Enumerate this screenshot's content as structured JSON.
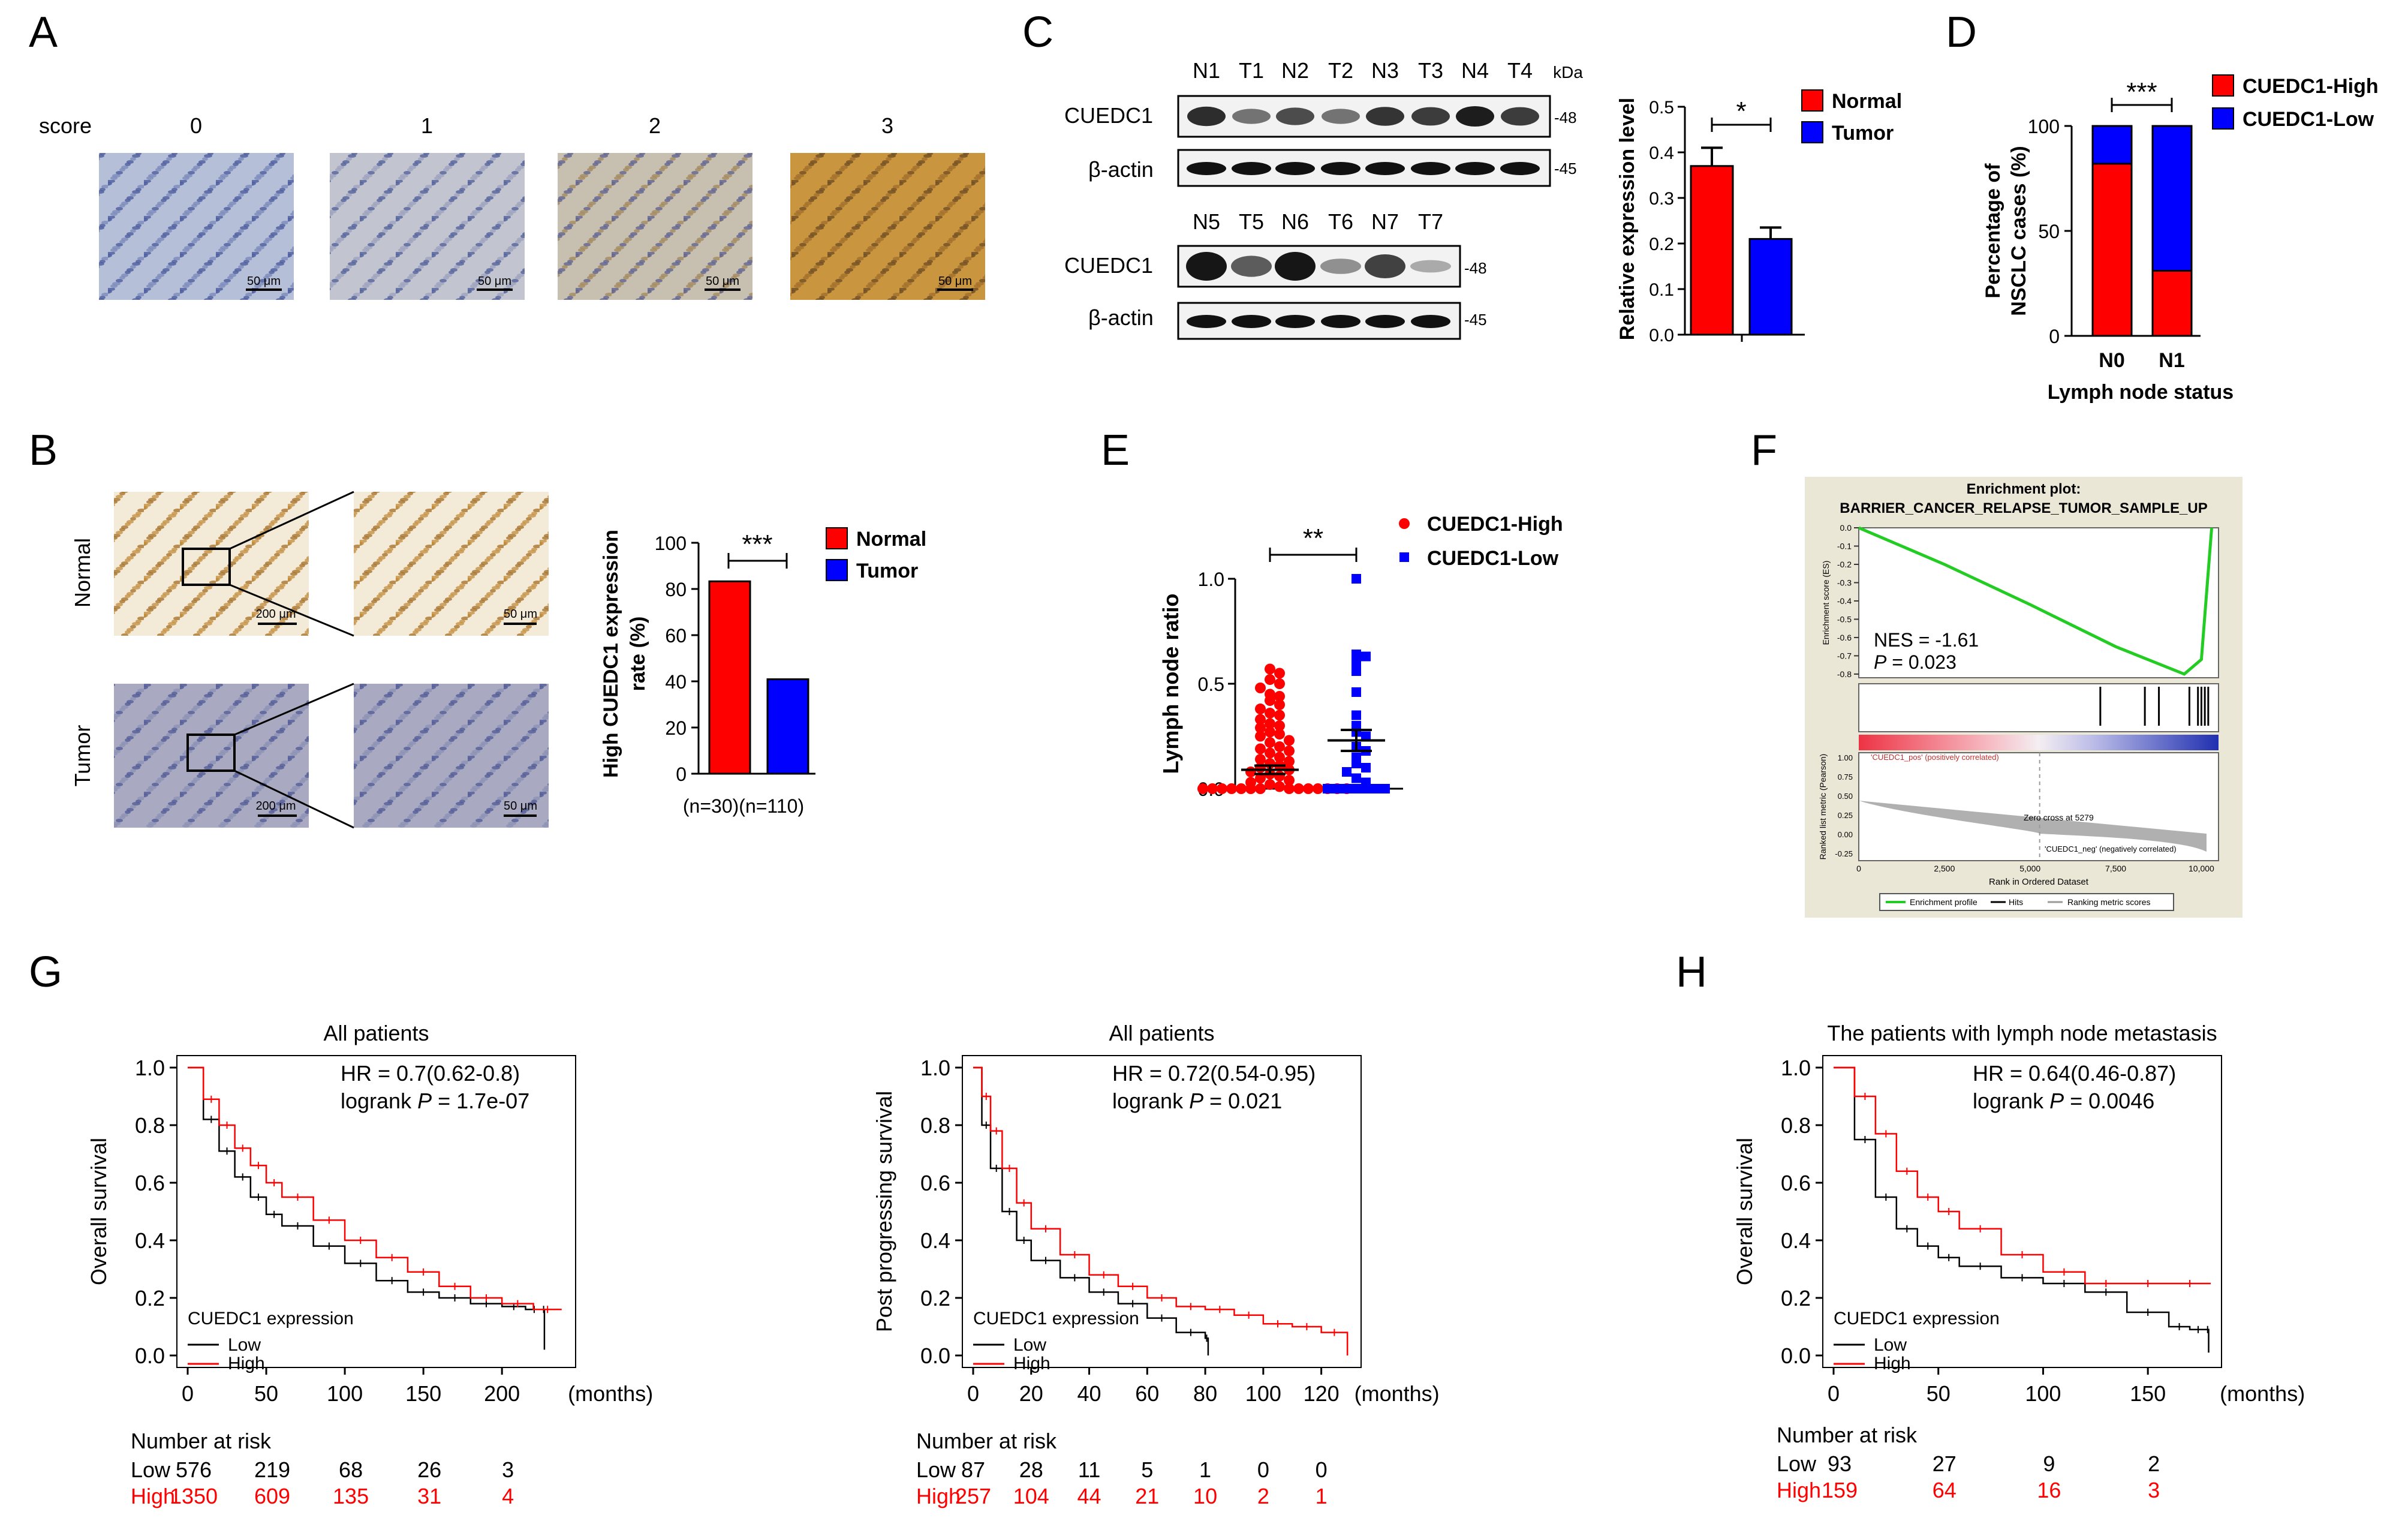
{
  "colors": {
    "normal": "#ff0000",
    "tumor": "#0000ff",
    "high": "#ff0000",
    "low": "#000000",
    "gsea_line": "#22cc22",
    "ihc_blue": "#8f9fc4",
    "ihc_brown": "#b98a3f"
  },
  "panels": {
    "A": "A",
    "B": "B",
    "C": "C",
    "D": "D",
    "E": "E",
    "F": "F",
    "G": "G",
    "H": "H"
  },
  "panelA": {
    "score_label": "score",
    "scores": [
      "0",
      "1",
      "2",
      "3"
    ],
    "scalebar": "50 μm"
  },
  "panelB": {
    "rows": [
      "Normal",
      "Tumor"
    ],
    "scalebar_low": "200 μm",
    "scalebar_high": "50 μm"
  },
  "panelC": {
    "lanes_top": [
      "N1",
      "T1",
      "N2",
      "T2",
      "N3",
      "T3",
      "N4",
      "T4"
    ],
    "lanes_bottom": [
      "N5",
      "T5",
      "N6",
      "T6",
      "N7",
      "T7"
    ],
    "kda": "kDa",
    "protein": "CUEDC1",
    "control": "β-actin",
    "mw_protein": "48",
    "mw_control": "45"
  },
  "chart_data": [
    {
      "id": "B-bar",
      "type": "bar",
      "categories": [
        "Normal",
        "Tumor"
      ],
      "values": [
        83.3,
        40.9
      ],
      "ylabel": "High CUEDC1 expression rate (%)",
      "ylim": [
        0,
        100
      ],
      "yticks": [
        "0",
        "20",
        "40",
        "60",
        "80",
        "100"
      ],
      "n_labels": [
        "(n=30)",
        "(n=110)"
      ],
      "significance": "***",
      "legend": [
        "Normal",
        "Tumor"
      ]
    },
    {
      "id": "C-bar",
      "type": "bar",
      "categories": [
        "Normal",
        "Tumor"
      ],
      "values": [
        0.37,
        0.21
      ],
      "errors": [
        0.04,
        0.025
      ],
      "ylabel": "Relative expression level",
      "ylim": [
        0,
        0.5
      ],
      "yticks": [
        "0.0",
        "0.1",
        "0.2",
        "0.3",
        "0.4",
        "0.5"
      ],
      "significance": "*",
      "legend": [
        "Normal",
        "Tumor"
      ]
    },
    {
      "id": "D-stacked",
      "type": "bar",
      "categories": [
        "N0",
        "N1"
      ],
      "series": [
        {
          "name": "CUEDC1-High",
          "values": [
            82,
            31
          ]
        },
        {
          "name": "CUEDC1-Low",
          "values": [
            18,
            69
          ]
        }
      ],
      "ylabel": "Percentage of NSCLC cases (%)",
      "xlabel": "Lymph node status",
      "ylim": [
        0,
        100
      ],
      "yticks": [
        "0",
        "50",
        "100"
      ],
      "significance": "***"
    },
    {
      "id": "E-scatter",
      "type": "scatter",
      "categories": [
        "CUEDC1-High",
        "CUEDC1-Low"
      ],
      "series": [
        {
          "name": "CUEDC1-High",
          "mean": 0.09,
          "sem": 0.02,
          "values": [
            0.57,
            0.55,
            0.52,
            0.5,
            0.48,
            0.45,
            0.44,
            0.42,
            0.4,
            0.38,
            0.36,
            0.35,
            0.33,
            0.31,
            0.3,
            0.29,
            0.27,
            0.26,
            0.25,
            0.23,
            0.22,
            0.2,
            0.19,
            0.18,
            0.17,
            0.15,
            0.14,
            0.13,
            0.12,
            0.11,
            0.1,
            0.09,
            0.08,
            0.07,
            0.06,
            0.05,
            0.04,
            0.03,
            0.02,
            0.01,
            0,
            0,
            0,
            0,
            0,
            0,
            0,
            0,
            0,
            0,
            0,
            0,
            0,
            0
          ]
        },
        {
          "name": "CUEDC1-Low",
          "mean": 0.23,
          "sem": 0.05,
          "values": [
            1.0,
            0.64,
            0.63,
            0.6,
            0.56,
            0.46,
            0.35,
            0.3,
            0.27,
            0.25,
            0.2,
            0.18,
            0.15,
            0.12,
            0.1,
            0.08,
            0.05,
            0.03,
            0,
            0,
            0,
            0,
            0,
            0,
            0
          ]
        }
      ],
      "ylabel": "Lymph node ratio",
      "ylim": [
        0,
        1
      ],
      "yticks": [
        "0.0",
        "0.5",
        "1.0"
      ],
      "significance": "**"
    },
    {
      "id": "F-gsea",
      "type": "line",
      "title": "Enrichment plot:",
      "subtitle": "BARRIER_CANCER_RELAPSE_TUMOR_SAMPLE_UP",
      "ylabel": "Enrichment score (ES)",
      "ylabel2": "Ranked list metric (Pearson)",
      "xlabel": "Rank in Ordered Dataset",
      "x": [
        0,
        2500,
        5000,
        7500,
        9500,
        10000,
        10300
      ],
      "y": [
        0,
        -0.2,
        -0.42,
        -0.65,
        -0.8,
        -0.72,
        0
      ],
      "ylim": [
        -0.8,
        0
      ],
      "yticks": [
        "0.0",
        "-0.1",
        "-0.2",
        "-0.3",
        "-0.4",
        "-0.5",
        "-0.6",
        "-0.7",
        "-0.8"
      ],
      "xticks": [
        "0",
        "2,500",
        "5,000",
        "7,500",
        "10,000"
      ],
      "y2ticks": [
        "1.00",
        "0.75",
        "0.50",
        "0.25",
        "0.00",
        "-0.25"
      ],
      "nes": "NES = -1.61",
      "p": "P = 0.023",
      "zero_cross": "Zero cross at 5279",
      "pos_label": "'CUEDC1_pos' (positively correlated)",
      "neg_label": "'CUEDC1_neg' (negatively correlated)",
      "legend": [
        "Enrichment profile",
        "Hits",
        "Ranking metric scores"
      ]
    },
    {
      "id": "G1-km",
      "type": "line",
      "title": "All patients",
      "ylabel": "Overall survival",
      "xunit": "(months)",
      "xticks": [
        0,
        50,
        100,
        150,
        200
      ],
      "xmax": 240,
      "yticks": [
        "0.0",
        "0.2",
        "0.4",
        "0.6",
        "0.8",
        "1.0"
      ],
      "hr": "HR = 0.7(0.62-0.8)",
      "logrank": "logrank ",
      "p": "P",
      "pval": " = 1.7e-07",
      "legend_title": "CUEDC1 expression",
      "series": [
        {
          "name": "Low",
          "x": [
            0,
            10,
            20,
            30,
            40,
            50,
            60,
            80,
            100,
            120,
            140,
            160,
            180,
            200,
            215,
            226,
            227
          ],
          "y": [
            1,
            0.82,
            0.71,
            0.62,
            0.55,
            0.49,
            0.45,
            0.38,
            0.32,
            0.26,
            0.22,
            0.2,
            0.18,
            0.17,
            0.16,
            0.16,
            0.02
          ]
        },
        {
          "name": "High",
          "x": [
            0,
            10,
            20,
            30,
            40,
            50,
            60,
            80,
            100,
            120,
            140,
            160,
            180,
            200,
            220,
            238
          ],
          "y": [
            1,
            0.89,
            0.8,
            0.72,
            0.66,
            0.6,
            0.55,
            0.47,
            0.4,
            0.34,
            0.29,
            0.24,
            0.2,
            0.18,
            0.16,
            0.16
          ]
        }
      ],
      "risk_title": "Number at risk",
      "risk_x": [
        "0",
        "50",
        "100",
        "150",
        "200"
      ],
      "risk": [
        {
          "name": "Low",
          "values": [
            "576",
            "219",
            "68",
            "26",
            "3"
          ]
        },
        {
          "name": "High",
          "values": [
            "1350",
            "609",
            "135",
            "31",
            "4"
          ]
        }
      ]
    },
    {
      "id": "G2-km",
      "type": "line",
      "title": "All patients",
      "ylabel": "Post progressing survival",
      "xunit": "(months)",
      "xticks": [
        0,
        20,
        40,
        60,
        80,
        100,
        120
      ],
      "xmax": 130,
      "yticks": [
        "0.0",
        "0.2",
        "0.4",
        "0.6",
        "0.8",
        "1.0"
      ],
      "hr": "HR = 0.72(0.54-0.95)",
      "logrank": "logrank ",
      "p": "P",
      "pval": " = 0.021",
      "legend_title": "CUEDC1 expression",
      "series": [
        {
          "name": "Low",
          "x": [
            0,
            3,
            6,
            10,
            15,
            20,
            30,
            40,
            50,
            60,
            70,
            80,
            81
          ],
          "y": [
            1,
            0.8,
            0.65,
            0.5,
            0.4,
            0.33,
            0.27,
            0.22,
            0.18,
            0.13,
            0.08,
            0.06,
            0.0
          ]
        },
        {
          "name": "High",
          "x": [
            0,
            3,
            6,
            10,
            15,
            20,
            30,
            40,
            50,
            60,
            70,
            80,
            90,
            100,
            110,
            120,
            129
          ],
          "y": [
            1,
            0.9,
            0.78,
            0.65,
            0.53,
            0.44,
            0.35,
            0.28,
            0.24,
            0.2,
            0.17,
            0.16,
            0.14,
            0.11,
            0.1,
            0.08,
            0.0
          ]
        }
      ],
      "risk_title": "Number at risk",
      "risk_x": [
        "0",
        "20",
        "40",
        "60",
        "80",
        "100",
        "120"
      ],
      "risk": [
        {
          "name": "Low",
          "values": [
            "87",
            "28",
            "11",
            "5",
            "1",
            "0",
            "0"
          ]
        },
        {
          "name": "High",
          "values": [
            "257",
            "104",
            "44",
            "21",
            "10",
            "2",
            "1"
          ]
        }
      ]
    },
    {
      "id": "H-km",
      "type": "line",
      "title": "The patients with lymph node metastasis",
      "ylabel": "Overall survival",
      "xunit": "(months)",
      "xticks": [
        0,
        50,
        100,
        150
      ],
      "xmax": 180,
      "yticks": [
        "0.0",
        "0.2",
        "0.4",
        "0.6",
        "0.8",
        "1.0"
      ],
      "hr": "HR = 0.64(0.46-0.87)",
      "logrank": "logrank ",
      "p": "P",
      "pval": " = 0.0046",
      "legend_title": "CUEDC1 expression",
      "series": [
        {
          "name": "Low",
          "x": [
            0,
            10,
            20,
            30,
            40,
            50,
            60,
            80,
            100,
            120,
            140,
            160,
            170,
            178,
            179
          ],
          "y": [
            1,
            0.75,
            0.55,
            0.44,
            0.38,
            0.34,
            0.31,
            0.27,
            0.25,
            0.22,
            0.15,
            0.1,
            0.09,
            0.09,
            0.01
          ]
        },
        {
          "name": "High",
          "x": [
            0,
            10,
            20,
            30,
            40,
            50,
            60,
            80,
            100,
            120,
            140,
            160,
            180
          ],
          "y": [
            1,
            0.9,
            0.77,
            0.64,
            0.55,
            0.5,
            0.44,
            0.35,
            0.29,
            0.25,
            0.25,
            0.25,
            0.25
          ]
        }
      ],
      "risk_title": "Number at risk",
      "risk_x": [
        "0",
        "50",
        "100",
        "150"
      ],
      "risk": [
        {
          "name": "Low",
          "values": [
            "93",
            "27",
            "9",
            "2"
          ]
        },
        {
          "name": "High",
          "values": [
            "159",
            "64",
            "16",
            "3"
          ]
        }
      ]
    }
  ]
}
